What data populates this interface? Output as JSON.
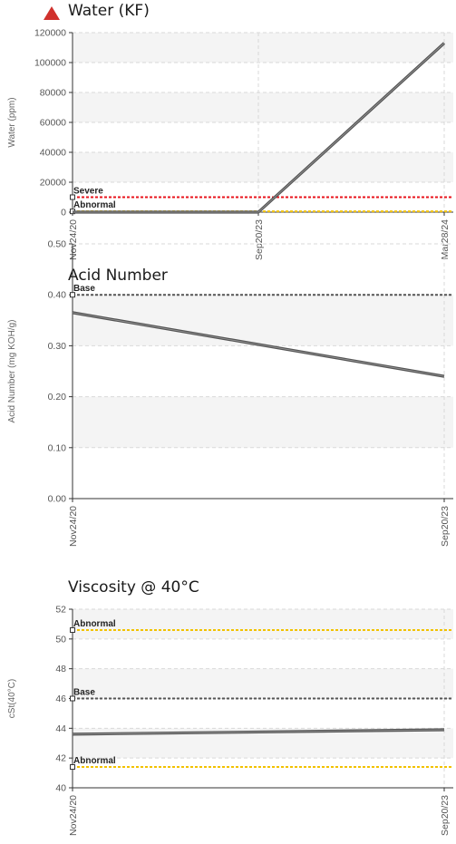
{
  "chart_data": [
    {
      "type": "line",
      "title": "Water (KF)",
      "alert": true,
      "ylabel": "Water (ppm)",
      "ylim": [
        0,
        120000
      ],
      "yticks": [
        "0",
        "20000",
        "40000",
        "60000",
        "80000",
        "100000",
        "120000"
      ],
      "ytick_values": [
        0,
        20000,
        40000,
        60000,
        80000,
        100000,
        120000
      ],
      "categories": [
        "Nov24/20",
        "Sep20/23",
        "Mar28/24"
      ],
      "series": [
        {
          "values": [
            0,
            0,
            113000
          ]
        }
      ],
      "thresholds": [
        {
          "label": "Severe",
          "value": 10000,
          "color": "#e8141c"
        },
        {
          "label": "Abnormal",
          "value": 500,
          "color": "#f2c200"
        }
      ],
      "grid": true
    },
    {
      "type": "line",
      "title": "Acid Number",
      "ylabel": "Acid Number (mg KOH/g)",
      "ylim": [
        0,
        0.5
      ],
      "yticks": [
        "0.00",
        "0.10",
        "0.20",
        "0.30",
        "0.40",
        "0.50"
      ],
      "ytick_values": [
        0,
        0.1,
        0.2,
        0.3,
        0.4,
        0.5
      ],
      "categories": [
        "Nov24/20",
        "Sep20/23"
      ],
      "series": [
        {
          "values": [
            0.365,
            0.24
          ]
        }
      ],
      "thresholds": [
        {
          "label": "Base",
          "value": 0.4,
          "color": "#555555"
        }
      ],
      "grid": true
    },
    {
      "type": "line",
      "title": "Viscosity @ 40°C",
      "ylabel": "cSt(40°C)",
      "ylim": [
        40,
        52
      ],
      "yticks": [
        "40",
        "42",
        "44",
        "46",
        "48",
        "50",
        "52"
      ],
      "ytick_values": [
        40,
        42,
        44,
        46,
        48,
        50,
        52
      ],
      "categories": [
        "Nov24/20",
        "Sep20/23"
      ],
      "series": [
        {
          "values": [
            43.6,
            43.9
          ]
        }
      ],
      "thresholds": [
        {
          "label": "Abnormal",
          "value": 50.6,
          "color": "#f2c200"
        },
        {
          "label": "Base",
          "value": 46.0,
          "color": "#555555"
        },
        {
          "label": "Abnormal",
          "value": 41.4,
          "color": "#f2c200"
        }
      ],
      "grid": true
    }
  ]
}
